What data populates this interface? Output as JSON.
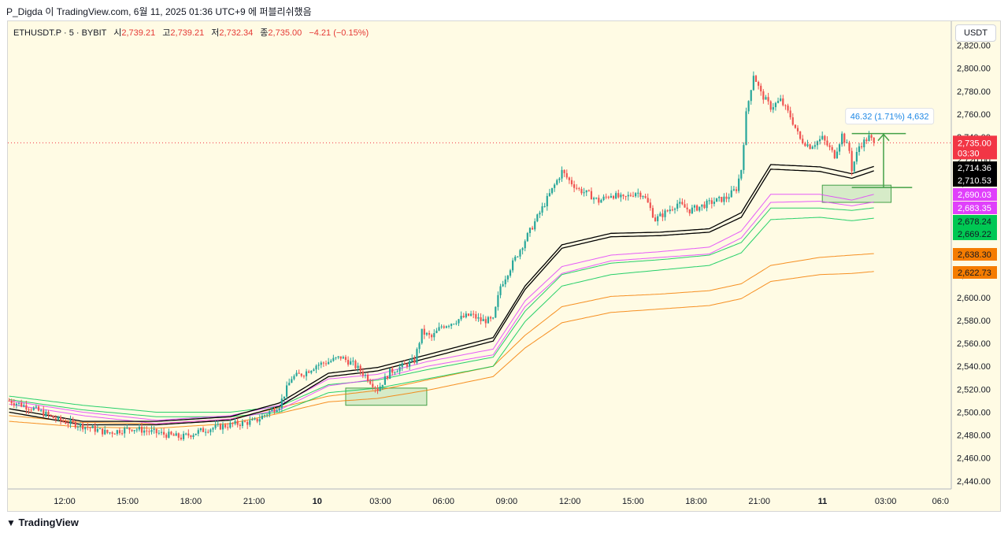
{
  "header": {
    "text": "P_Digda 이 TradingView.com, 6월 11, 2025 01:36 UTC+9 에 퍼블리쉬했음"
  },
  "legend": {
    "symbol": "ETHUSDT.P · 5 · BYBIT",
    "open_label": "시",
    "open": "2,739.21",
    "high_label": "고",
    "high": "2,739.21",
    "low_label": "저",
    "low": "2,732.34",
    "close_label": "종",
    "close": "2,735.00",
    "change": "−4.21 (−0.15%)"
  },
  "currency": "USDT",
  "footer": {
    "brand": "TradingView"
  },
  "measure_label": "46.32 (1.71%) 4,632",
  "colors": {
    "bg": "#fffbe4",
    "up": "#26a69a",
    "down": "#ef5350",
    "ma_black": "#000000",
    "ma_violet": "#e040fb",
    "ma_green": "#00c853",
    "ma_orange": "#f57c00",
    "measure": "#43a047",
    "box_fill": "#a5d6a7",
    "price_badge": "#f23645"
  },
  "chart_data": {
    "type": "candlestick",
    "x_ticks": [
      "12:00",
      "15:00",
      "18:00",
      "21:00",
      "10",
      "03:00",
      "06:00",
      "09:00",
      "12:00",
      "15:00",
      "18:00",
      "21:00",
      "11",
      "03:00",
      "06:0"
    ],
    "y_ticks": [
      2820,
      2800,
      2780,
      2760,
      2740,
      2720,
      2700,
      2680,
      2660,
      2640,
      2620,
      2600,
      2580,
      2560,
      2540,
      2520,
      2500,
      2480,
      2460,
      2440
    ],
    "ylim": [
      2433,
      2841
    ],
    "current_price": {
      "value": "2,735.00",
      "countdown": "03:30"
    },
    "price_badges": [
      {
        "value": "2,714.36",
        "color": "#000000"
      },
      {
        "value": "2,710.53",
        "color": "#000000"
      },
      {
        "value": "2,690.03",
        "color": "#e040fb"
      },
      {
        "value": "2,683.35",
        "color": "#e040fb"
      },
      {
        "value": "2,678.24",
        "color": "#00c853"
      },
      {
        "value": "2,669.22",
        "color": "#00c853"
      },
      {
        "value": "2,638.30",
        "color": "#f57c00"
      },
      {
        "value": "2,622.73",
        "color": "#f57c00"
      }
    ],
    "price_path": [
      [
        0,
        2510
      ],
      [
        10,
        2503
      ],
      [
        20,
        2493
      ],
      [
        30,
        2488
      ],
      [
        40,
        2482
      ],
      [
        50,
        2486
      ],
      [
        60,
        2482
      ],
      [
        70,
        2478
      ],
      [
        80,
        2485
      ],
      [
        90,
        2489
      ],
      [
        100,
        2492
      ],
      [
        110,
        2506
      ],
      [
        115,
        2530
      ],
      [
        120,
        2534
      ],
      [
        125,
        2541
      ],
      [
        130,
        2544
      ],
      [
        135,
        2548
      ],
      [
        140,
        2542
      ],
      [
        145,
        2532
      ],
      [
        150,
        2520
      ],
      [
        155,
        2535
      ],
      [
        160,
        2540
      ],
      [
        165,
        2545
      ],
      [
        168,
        2570
      ],
      [
        172,
        2565
      ],
      [
        176,
        2575
      ],
      [
        180,
        2578
      ],
      [
        184,
        2582
      ],
      [
        188,
        2585
      ],
      [
        192,
        2580
      ],
      [
        197,
        2580
      ],
      [
        200,
        2610
      ],
      [
        205,
        2630
      ],
      [
        210,
        2650
      ],
      [
        215,
        2670
      ],
      [
        220,
        2690
      ],
      [
        225,
        2710
      ],
      [
        228,
        2702
      ],
      [
        232,
        2694
      ],
      [
        236,
        2690
      ],
      [
        240,
        2684
      ],
      [
        245,
        2690
      ],
      [
        250,
        2686
      ],
      [
        255,
        2692
      ],
      [
        258,
        2690
      ],
      [
        260,
        2682
      ],
      [
        263,
        2668
      ],
      [
        267,
        2674
      ],
      [
        272,
        2682
      ],
      [
        277,
        2676
      ],
      [
        282,
        2680
      ],
      [
        287,
        2684
      ],
      [
        292,
        2687
      ],
      [
        296,
        2695
      ],
      [
        298,
        2712
      ],
      [
        300,
        2760
      ],
      [
        303,
        2795
      ],
      [
        306,
        2778
      ],
      [
        310,
        2766
      ],
      [
        314,
        2772
      ],
      [
        318,
        2758
      ],
      [
        322,
        2738
      ],
      [
        326,
        2732
      ],
      [
        331,
        2739
      ],
      [
        336,
        2724
      ],
      [
        339,
        2742
      ],
      [
        342,
        2728
      ],
      [
        343,
        2712
      ],
      [
        346,
        2732
      ],
      [
        350,
        2740
      ],
      [
        352,
        2735
      ]
    ],
    "ma_black_upper": [
      [
        0,
        2503
      ],
      [
        30,
        2492
      ],
      [
        60,
        2492
      ],
      [
        90,
        2496
      ],
      [
        110,
        2508
      ],
      [
        130,
        2534
      ],
      [
        150,
        2539
      ],
      [
        170,
        2550
      ],
      [
        197,
        2565
      ],
      [
        210,
        2610
      ],
      [
        225,
        2646
      ],
      [
        245,
        2656
      ],
      [
        265,
        2657
      ],
      [
        285,
        2660
      ],
      [
        298,
        2674
      ],
      [
        310,
        2716
      ],
      [
        330,
        2714
      ],
      [
        343,
        2708
      ],
      [
        352,
        2714.36
      ]
    ],
    "ma_black_lower": [
      [
        0,
        2500
      ],
      [
        30,
        2489
      ],
      [
        60,
        2489
      ],
      [
        90,
        2493
      ],
      [
        110,
        2505
      ],
      [
        130,
        2531
      ],
      [
        150,
        2536
      ],
      [
        170,
        2547
      ],
      [
        197,
        2562
      ],
      [
        210,
        2607
      ],
      [
        225,
        2643
      ],
      [
        245,
        2653
      ],
      [
        265,
        2654
      ],
      [
        285,
        2657
      ],
      [
        298,
        2670
      ],
      [
        310,
        2712
      ],
      [
        330,
        2710
      ],
      [
        343,
        2704
      ],
      [
        352,
        2710.53
      ]
    ],
    "ma_violet_upper": [
      [
        0,
        2510
      ],
      [
        30,
        2500
      ],
      [
        60,
        2493
      ],
      [
        90,
        2497
      ],
      [
        110,
        2506
      ],
      [
        130,
        2529
      ],
      [
        150,
        2533
      ],
      [
        170,
        2544
      ],
      [
        197,
        2555
      ],
      [
        210,
        2597
      ],
      [
        225,
        2627
      ],
      [
        245,
        2637
      ],
      [
        265,
        2640
      ],
      [
        285,
        2644
      ],
      [
        298,
        2658
      ],
      [
        310,
        2690
      ],
      [
        330,
        2690
      ],
      [
        343,
        2685
      ],
      [
        352,
        2690.03
      ]
    ],
    "ma_violet_lower": [
      [
        0,
        2507
      ],
      [
        30,
        2497
      ],
      [
        60,
        2490
      ],
      [
        90,
        2494
      ],
      [
        110,
        2502
      ],
      [
        130,
        2523
      ],
      [
        150,
        2529
      ],
      [
        170,
        2540
      ],
      [
        197,
        2550
      ],
      [
        210,
        2592
      ],
      [
        225,
        2621
      ],
      [
        245,
        2632
      ],
      [
        265,
        2635
      ],
      [
        285,
        2638
      ],
      [
        298,
        2652
      ],
      [
        310,
        2683
      ],
      [
        330,
        2684
      ],
      [
        343,
        2680
      ],
      [
        352,
        2683.35
      ]
    ],
    "ma_green_upper": [
      [
        0,
        2514
      ],
      [
        30,
        2506
      ],
      [
        60,
        2500
      ],
      [
        90,
        2500
      ],
      [
        110,
        2505
      ],
      [
        130,
        2524
      ],
      [
        150,
        2528
      ],
      [
        170,
        2537
      ],
      [
        197,
        2548
      ],
      [
        210,
        2588
      ],
      [
        225,
        2620
      ],
      [
        245,
        2630
      ],
      [
        265,
        2633
      ],
      [
        285,
        2637
      ],
      [
        298,
        2648
      ],
      [
        310,
        2678
      ],
      [
        330,
        2678
      ],
      [
        343,
        2676
      ],
      [
        352,
        2678.24
      ]
    ],
    "ma_green_lower": [
      [
        0,
        2511
      ],
      [
        30,
        2502
      ],
      [
        60,
        2496
      ],
      [
        90,
        2496
      ],
      [
        110,
        2500
      ],
      [
        130,
        2517
      ],
      [
        150,
        2521
      ],
      [
        170,
        2529
      ],
      [
        197,
        2540
      ],
      [
        210,
        2579
      ],
      [
        225,
        2610
      ],
      [
        245,
        2620
      ],
      [
        265,
        2624
      ],
      [
        285,
        2628
      ],
      [
        298,
        2639
      ],
      [
        310,
        2668
      ],
      [
        330,
        2670
      ],
      [
        343,
        2667
      ],
      [
        352,
        2669.22
      ]
    ],
    "ma_orange_upper": [
      [
        0,
        2497
      ],
      [
        30,
        2491
      ],
      [
        60,
        2490
      ],
      [
        90,
        2494
      ],
      [
        110,
        2504
      ],
      [
        130,
        2514
      ],
      [
        150,
        2519
      ],
      [
        170,
        2528
      ],
      [
        197,
        2540
      ],
      [
        210,
        2567
      ],
      [
        225,
        2592
      ],
      [
        245,
        2601
      ],
      [
        265,
        2603
      ],
      [
        285,
        2606
      ],
      [
        298,
        2612
      ],
      [
        310,
        2628
      ],
      [
        330,
        2635
      ],
      [
        343,
        2637
      ],
      [
        352,
        2638.3
      ]
    ],
    "ma_orange_lower": [
      [
        0,
        2492
      ],
      [
        30,
        2487
      ],
      [
        60,
        2486
      ],
      [
        90,
        2490
      ],
      [
        110,
        2499
      ],
      [
        130,
        2509
      ],
      [
        150,
        2512
      ],
      [
        170,
        2519
      ],
      [
        197,
        2531
      ],
      [
        210,
        2556
      ],
      [
        225,
        2578
      ],
      [
        245,
        2587
      ],
      [
        265,
        2590
      ],
      [
        285,
        2593
      ],
      [
        298,
        2599
      ],
      [
        310,
        2614
      ],
      [
        330,
        2620
      ],
      [
        343,
        2621
      ],
      [
        352,
        2622.73
      ]
    ],
    "boxes": [
      {
        "x0": 137,
        "x1": 170,
        "y0": 2506,
        "y1": 2521
      },
      {
        "x0": 331,
        "x1": 359,
        "y0": 2683,
        "y1": 2698
      }
    ],
    "measure": {
      "x0": 343,
      "x1": 365,
      "y0": 2696,
      "y1": 2743
    }
  }
}
